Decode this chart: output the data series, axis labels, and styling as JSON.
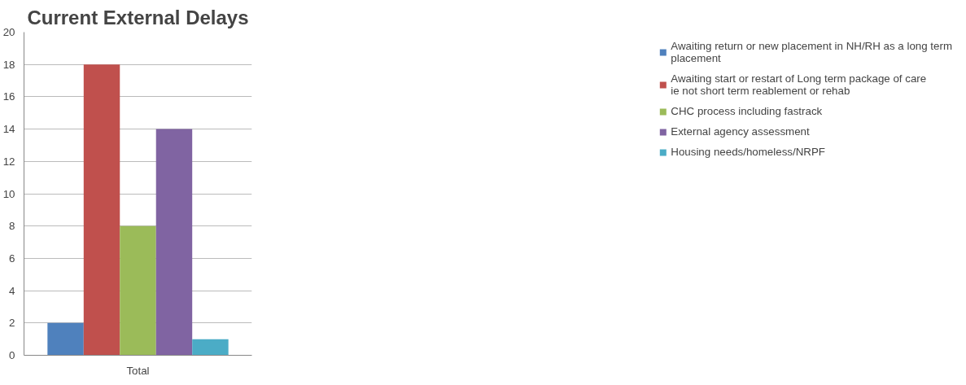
{
  "chart_data": {
    "type": "bar",
    "title": "Current External Delays",
    "categories": [
      "Total"
    ],
    "series": [
      {
        "name": "Awaiting return or new placement in NH/RH as a long term placement",
        "color": "#4f81bd",
        "values": [
          2
        ]
      },
      {
        "name": "Awaiting start or restart of Long term package of care ie not short term reablement or rehab",
        "color": "#c0504d",
        "values": [
          18
        ]
      },
      {
        "name": "CHC process including fastrack",
        "color": "#9bbb59",
        "values": [
          8
        ]
      },
      {
        "name": "External agency assessment",
        "color": "#8064a2",
        "values": [
          14
        ]
      },
      {
        "name": "Housing needs/homeless/NRPF",
        "color": "#4bacc6",
        "values": [
          1
        ]
      }
    ],
    "ylim": [
      0,
      20
    ],
    "yticks": [
      0,
      2,
      4,
      6,
      8,
      10,
      12,
      14,
      16,
      18,
      20
    ],
    "grid": "y",
    "legend": "right"
  }
}
